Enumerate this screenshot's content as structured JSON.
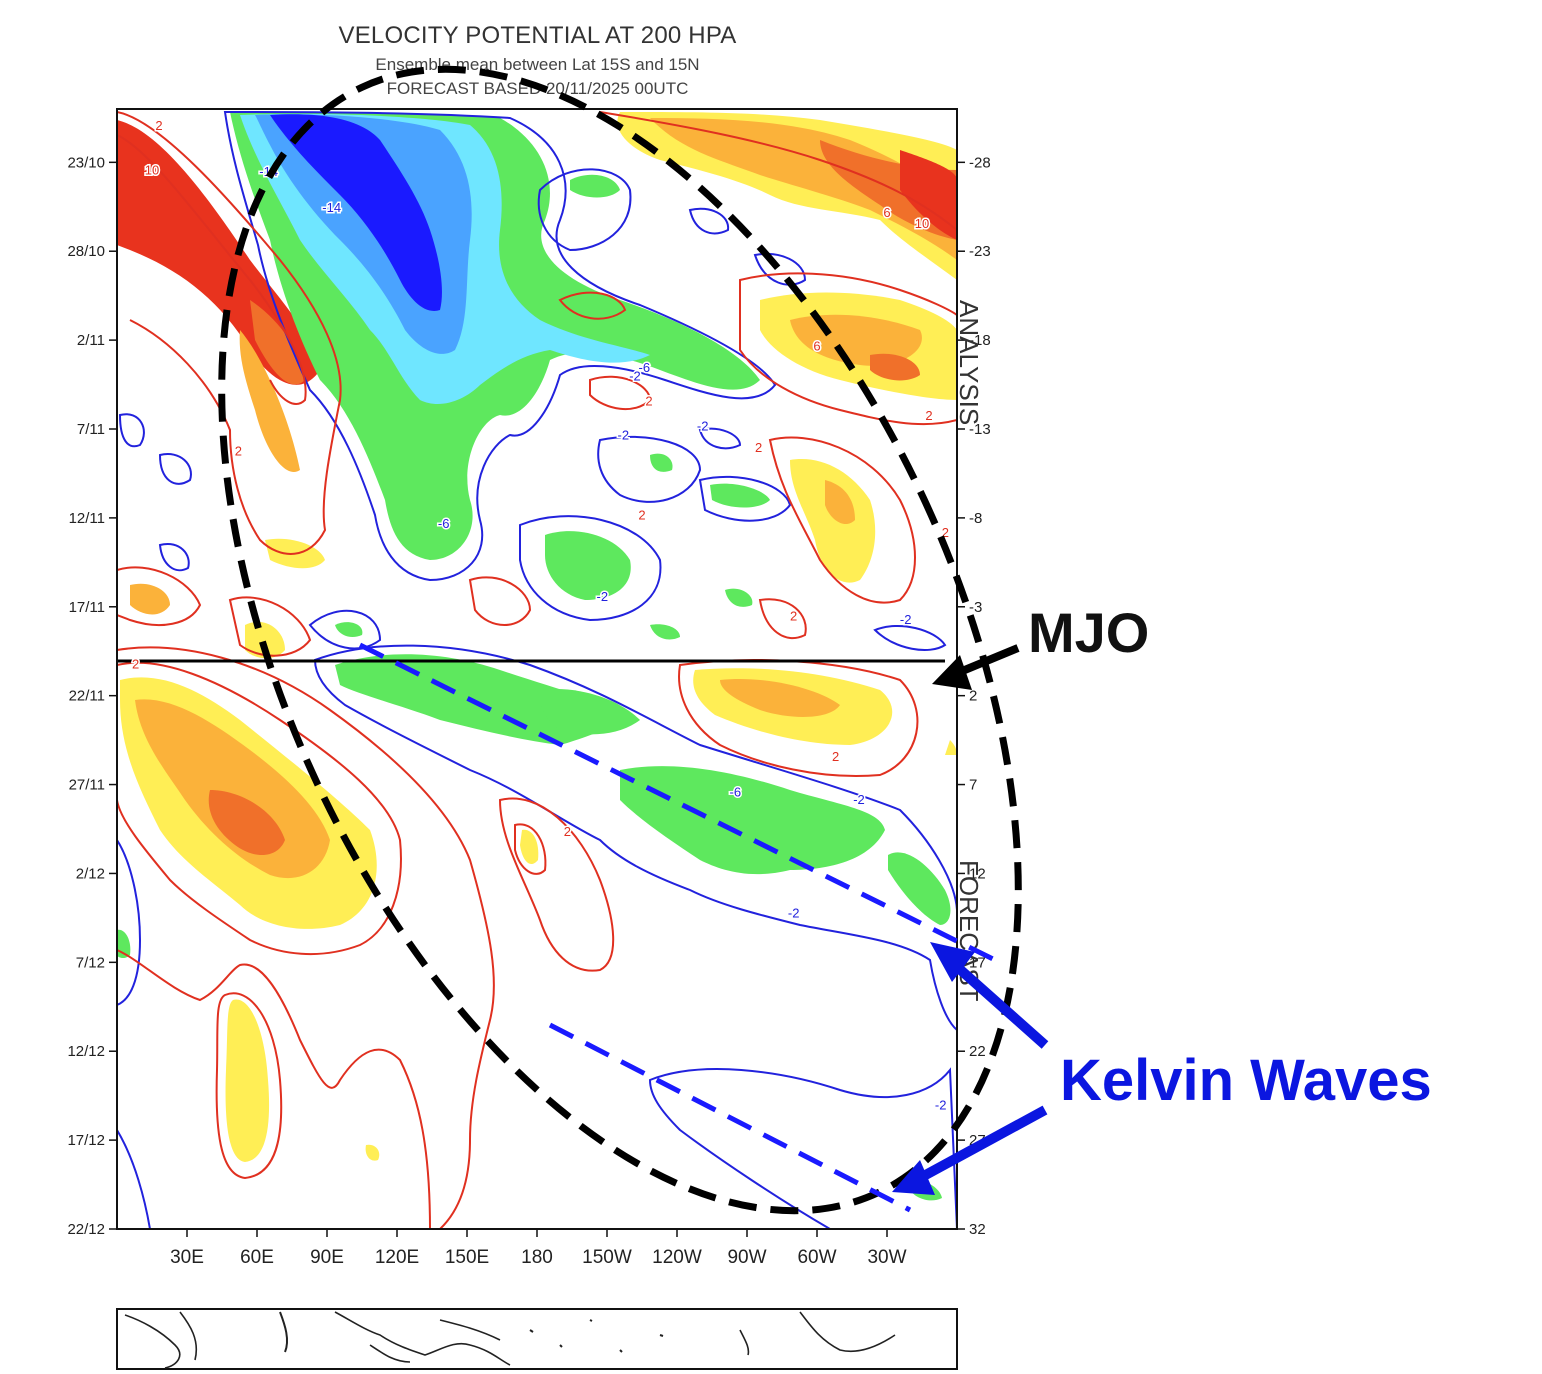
{
  "chart_data": {
    "type": "heatmap",
    "title": "VELOCITY POTENTIAL AT 200 HPA",
    "subtitle": "Ensemble mean between  Lat 15S and 15N",
    "subtitle2": "FORECAST BASED 20/11/2025 00UTC",
    "x_ticks": [
      "30E",
      "60E",
      "90E",
      "120E",
      "150E",
      "180",
      "150W",
      "120W",
      "90W",
      "60W",
      "30W"
    ],
    "x_tick_values": [
      30,
      60,
      90,
      120,
      150,
      180,
      210,
      240,
      270,
      300,
      330
    ],
    "xlim": [
      0,
      360
    ],
    "y_ticks_left": [
      "23/10",
      "28/10",
      "2/11",
      "7/11",
      "12/11",
      "17/11",
      "22/11",
      "27/11",
      "2/12",
      "7/12",
      "12/12",
      "17/12",
      "22/12"
    ],
    "y_ticks_right": [
      "-28",
      "-23",
      "-18",
      "-13",
      "-8",
      "-3",
      "2",
      "7",
      "12",
      "17",
      "22",
      "27",
      "32"
    ],
    "y_tick_values": [
      -28,
      -23,
      -18,
      -13,
      -8,
      -3,
      2,
      7,
      12,
      17,
      22,
      27,
      32
    ],
    "ylim": [
      -31,
      32
    ],
    "forecast_start_day": 0,
    "side_labels": {
      "analysis": "ANALYSIS",
      "forecast": "FORECAST"
    },
    "contour_labels": [
      {
        "text": "-14",
        "lon": 65,
        "day": -27.5,
        "color": "blue"
      },
      {
        "text": "-14",
        "lon": 92,
        "day": -25.5,
        "color": "blue"
      },
      {
        "text": "-6",
        "lon": 226,
        "day": -16.5,
        "color": "blue"
      },
      {
        "text": "-2",
        "lon": 222,
        "day": -16,
        "color": "blue"
      },
      {
        "text": "-2",
        "lon": 251,
        "day": -13.2,
        "color": "blue"
      },
      {
        "text": "-2",
        "lon": 217,
        "day": -12.7,
        "color": "blue"
      },
      {
        "text": "-6",
        "lon": 140,
        "day": -7.7,
        "color": "blue"
      },
      {
        "text": "-2",
        "lon": 208,
        "day": -3.6,
        "color": "blue"
      },
      {
        "text": "-2",
        "lon": 338,
        "day": -2.3,
        "color": "blue"
      },
      {
        "text": "-6",
        "lon": 265,
        "day": 7.4,
        "color": "blue"
      },
      {
        "text": "-2",
        "lon": 318,
        "day": 7.8,
        "color": "blue"
      },
      {
        "text": "-2",
        "lon": 290,
        "day": 14.2,
        "color": "blue"
      },
      {
        "text": "-2",
        "lon": 353,
        "day": 25,
        "color": "blue"
      },
      {
        "text": "2",
        "lon": 18,
        "day": -30.1,
        "color": "red"
      },
      {
        "text": "10",
        "lon": 15,
        "day": -27.6,
        "color": "red"
      },
      {
        "text": "10",
        "lon": 345,
        "day": -24.6,
        "color": "red"
      },
      {
        "text": "6",
        "lon": 330,
        "day": -25.2,
        "color": "red"
      },
      {
        "text": "6",
        "lon": 300,
        "day": -17.7,
        "color": "red"
      },
      {
        "text": "2",
        "lon": 228,
        "day": -14.6,
        "color": "red"
      },
      {
        "text": "2",
        "lon": 348,
        "day": -13.8,
        "color": "red"
      },
      {
        "text": "2",
        "lon": 52,
        "day": -11.8,
        "color": "red"
      },
      {
        "text": "2",
        "lon": 275,
        "day": -12,
        "color": "red"
      },
      {
        "text": "2",
        "lon": 225,
        "day": -8.2,
        "color": "red"
      },
      {
        "text": "2",
        "lon": 355,
        "day": -7.2,
        "color": "red"
      },
      {
        "text": "2",
        "lon": 290,
        "day": -2.5,
        "color": "red"
      },
      {
        "text": "2",
        "lon": 8,
        "day": 0.2,
        "color": "red"
      },
      {
        "text": "2",
        "lon": 308,
        "day": 5.4,
        "color": "red"
      },
      {
        "text": "2",
        "lon": 193,
        "day": 9.6,
        "color": "red"
      }
    ],
    "annotations": [
      {
        "text": "MJO"
      },
      {
        "text": "Kelvin Waves"
      }
    ],
    "colors": {
      "neg_strong": "#1a1aff",
      "neg_mid": "#4aa3ff",
      "neg_light": "#6fe6ff",
      "neg_weak": "#5ee85e",
      "pos_weak": "#ffee55",
      "pos_mid": "#fbb23a",
      "pos_strong": "#f0702a",
      "pos_max": "#e8331e",
      "contour_neg": "#2222dd",
      "contour_pos": "#e03020",
      "annotation_mjo": "#111111",
      "annotation_kelvin": "#0b16e0"
    }
  }
}
